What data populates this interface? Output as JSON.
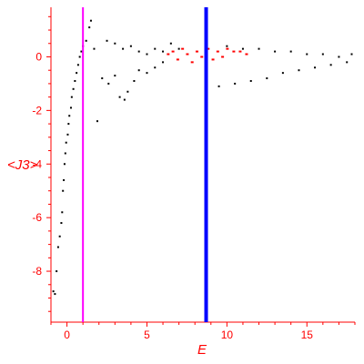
{
  "chart_data": {
    "type": "scatter",
    "title": "",
    "xlabel": "E",
    "ylabel": "<J3>",
    "xlim": [
      -1,
      18
    ],
    "ylim": [
      -9.9,
      1.85
    ],
    "x_ticks": [
      0,
      5,
      10,
      15
    ],
    "y_ticks": [
      0,
      -2,
      -4,
      -6,
      -8
    ],
    "grid": false,
    "legend": "none",
    "colors": {
      "axis": "#ff0000",
      "series_main": "#000000",
      "series_highlight": "#ff0000",
      "vline_left": "#ff00ff",
      "vline_right": "#0000ff"
    },
    "vertical_lines": [
      {
        "x": 1.0,
        "color": "#ff00ff"
      },
      {
        "x": 8.7,
        "color": "#0000ff"
      }
    ],
    "series": [
      {
        "color": "#000000",
        "points": [
          [
            -0.85,
            -8.75
          ],
          [
            -0.75,
            -8.85
          ],
          [
            -0.65,
            -8.0
          ],
          [
            -0.55,
            -7.1
          ],
          [
            -0.45,
            -6.7
          ],
          [
            -0.35,
            -6.2
          ],
          [
            -0.3,
            -5.8
          ],
          [
            -0.25,
            -5.0
          ],
          [
            -0.2,
            -4.6
          ],
          [
            -0.15,
            -4.0
          ],
          [
            -0.1,
            -3.6
          ],
          [
            -0.05,
            -3.2
          ],
          [
            0.05,
            -2.9
          ],
          [
            0.1,
            -2.5
          ],
          [
            0.15,
            -2.2
          ],
          [
            0.25,
            -1.9
          ],
          [
            0.3,
            -1.5
          ],
          [
            0.4,
            -1.2
          ],
          [
            0.5,
            -0.9
          ],
          [
            0.6,
            -0.6
          ],
          [
            0.7,
            -0.3
          ],
          [
            0.8,
            0.0
          ],
          [
            0.9,
            0.2
          ],
          [
            1.0,
            0.4
          ],
          [
            1.2,
            0.6
          ],
          [
            1.4,
            1.1
          ],
          [
            1.5,
            1.35
          ],
          [
            1.7,
            0.3
          ],
          [
            1.9,
            -2.4
          ],
          [
            2.2,
            -0.8
          ],
          [
            2.6,
            -1.0
          ],
          [
            3.0,
            -0.7
          ],
          [
            3.3,
            -1.5
          ],
          [
            3.6,
            -1.6
          ],
          [
            3.8,
            -1.3
          ],
          [
            4.2,
            -0.9
          ],
          [
            4.5,
            -0.5
          ],
          [
            5.0,
            -0.6
          ],
          [
            5.5,
            -0.4
          ],
          [
            6.0,
            -0.2
          ],
          [
            2.5,
            0.6
          ],
          [
            3.0,
            0.5
          ],
          [
            3.5,
            0.3
          ],
          [
            4.0,
            0.4
          ],
          [
            4.5,
            0.2
          ],
          [
            5.0,
            0.1
          ],
          [
            5.5,
            0.3
          ],
          [
            6.0,
            0.2
          ],
          [
            6.5,
            0.5
          ],
          [
            7.0,
            0.3
          ],
          [
            9.5,
            -1.1
          ],
          [
            10.5,
            -1.0
          ],
          [
            11.5,
            -0.9
          ],
          [
            12.5,
            -0.8
          ],
          [
            13.5,
            -0.6
          ],
          [
            14.5,
            -0.5
          ],
          [
            15.5,
            -0.4
          ],
          [
            16.5,
            -0.3
          ],
          [
            17.5,
            -0.2
          ],
          [
            10.0,
            0.4
          ],
          [
            11.0,
            0.3
          ],
          [
            12.0,
            0.3
          ],
          [
            13.0,
            0.2
          ],
          [
            14.0,
            0.2
          ],
          [
            15.0,
            0.1
          ],
          [
            16.0,
            0.1
          ],
          [
            17.0,
            0.0
          ],
          [
            17.8,
            0.1
          ]
        ]
      },
      {
        "color": "#ff0000",
        "points": [
          [
            6.3,
            0.1
          ],
          [
            6.6,
            0.2
          ],
          [
            6.9,
            -0.1
          ],
          [
            7.2,
            0.3
          ],
          [
            7.5,
            0.1
          ],
          [
            7.8,
            -0.2
          ],
          [
            8.1,
            0.2
          ],
          [
            8.4,
            0.0
          ],
          [
            8.8,
            0.3
          ],
          [
            9.1,
            -0.1
          ],
          [
            9.4,
            0.2
          ],
          [
            9.7,
            0.0
          ],
          [
            10.0,
            0.3
          ],
          [
            10.4,
            0.2
          ],
          [
            10.8,
            0.2
          ],
          [
            11.2,
            0.1
          ]
        ]
      }
    ]
  }
}
